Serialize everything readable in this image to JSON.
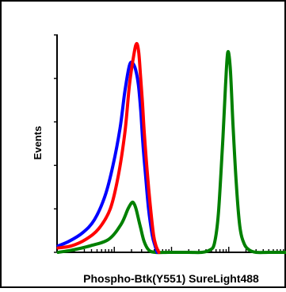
{
  "chart_data": {
    "type": "line",
    "chart_kind": "flow cytometry histogram",
    "xlabel": "Phospho-Btk(Y551) SureLight488",
    "ylabel": "Events",
    "x_scale": "log",
    "xlim": [
      1,
      10000
    ],
    "ylim": [
      0,
      100
    ],
    "grid": false,
    "legend": "none",
    "series": [
      {
        "color": "#0000ff",
        "x": [
          1.05,
          1.6,
          2.8,
          4.5,
          6.9,
          9.5,
          12.6,
          15.3,
          18.4,
          21.0,
          23.6,
          26.4,
          29.0,
          31.6,
          35.0,
          39.7,
          46.0,
          51.5,
          56.2
        ],
        "y": [
          3,
          5,
          9,
          15,
          26,
          40,
          57,
          74,
          86,
          87,
          84,
          77,
          65,
          50,
          36,
          20,
          8,
          3,
          0
        ]
      },
      {
        "color": "#ff0000",
        "x": [
          1.05,
          1.8,
          3.2,
          5.4,
          8.5,
          11.7,
          15.3,
          18.4,
          22.0,
          24.5,
          26.7,
          28.6,
          30.9,
          33.4,
          37.9,
          43.1,
          48.5,
          53.6,
          60.0
        ],
        "y": [
          2,
          3,
          6,
          11,
          20,
          35,
          55,
          77,
          91,
          96,
          92,
          82,
          70,
          55,
          36,
          20,
          8,
          3,
          0
        ]
      },
      {
        "color": "#008000",
        "x": [
          1.05,
          1.8,
          3.8,
          8.0,
          13.2,
          17.4,
          20.5,
          22.5,
          24.0,
          26.1,
          29.0,
          33.2,
          40.2,
          52.0,
          90.0,
          200.0,
          340.0,
          460.0,
          560.0,
          660.0,
          780.0,
          880.0,
          960.0,
          1060.0,
          1180.0,
          1350.0,
          1560.0,
          1850.0,
          2300.0,
          3000.0,
          5000.0,
          10000.0
        ],
        "y": [
          0,
          1,
          3,
          6,
          13,
          20,
          23,
          22,
          20,
          16,
          11,
          5,
          1,
          0,
          0,
          0,
          0,
          1,
          4,
          18,
          50,
          77,
          92,
          85,
          60,
          32,
          12,
          4,
          1,
          0,
          0,
          0
        ]
      }
    ]
  }
}
